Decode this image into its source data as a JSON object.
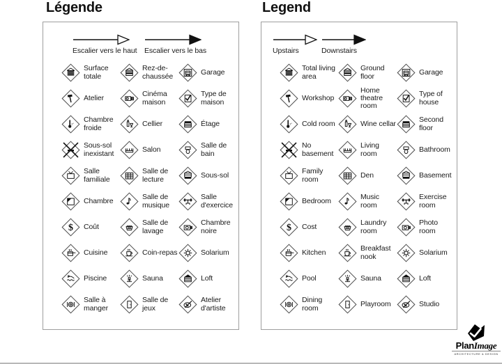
{
  "page": {
    "background": "#ffffff",
    "ink": "#1a1a1a",
    "panel_border": "#9e9e9e"
  },
  "panels": [
    {
      "id": "fr",
      "title": "Légende",
      "arrows": [
        {
          "label": "Escalier vers le haut",
          "head": "open"
        },
        {
          "label": "Escalier vers le bas",
          "head": "filled"
        }
      ],
      "items": [
        {
          "icon": "house-all",
          "label": "Surface totale"
        },
        {
          "icon": "house-ground",
          "label": "Rez-de-chaussée"
        },
        {
          "icon": "garage",
          "label": "Garage"
        },
        {
          "icon": "hammer",
          "label": "Atelier"
        },
        {
          "icon": "projector",
          "label": "Cinéma maison"
        },
        {
          "icon": "check-sheet",
          "label": "Type de maison"
        },
        {
          "icon": "thermometer",
          "label": "Chambre froide"
        },
        {
          "icon": "wine",
          "label": "Cellier"
        },
        {
          "icon": "house-top",
          "label": "Étage"
        },
        {
          "icon": "x-mark",
          "label": "Sous-sol inexistant"
        },
        {
          "icon": "sofa",
          "label": "Salon"
        },
        {
          "icon": "toilet",
          "label": "Salle de bain"
        },
        {
          "icon": "tv",
          "label": "Salle familiale"
        },
        {
          "icon": "bookshelf",
          "label": "Salle de lecture"
        },
        {
          "icon": "house-bottom",
          "label": "Sous-sol"
        },
        {
          "icon": "bed",
          "label": "Chambre"
        },
        {
          "icon": "music-note",
          "label": "Salle de musique"
        },
        {
          "icon": "dumbbell",
          "label": "Salle d'exercice"
        },
        {
          "icon": "dollar",
          "label": "Coût"
        },
        {
          "icon": "basket",
          "label": "Salle de lavage"
        },
        {
          "icon": "camera",
          "label": "Chambre noire"
        },
        {
          "icon": "pot",
          "label": "Cuisine"
        },
        {
          "icon": "cup",
          "label": "Coin-repas"
        },
        {
          "icon": "sun",
          "label": "Solarium"
        },
        {
          "icon": "pool",
          "label": "Piscine"
        },
        {
          "icon": "sauna",
          "label": "Sauna"
        },
        {
          "icon": "house-roof",
          "label": "Loft"
        },
        {
          "icon": "plate",
          "label": "Salle à manger"
        },
        {
          "icon": "door",
          "label": "Salle de jeux"
        },
        {
          "icon": "palette",
          "label": "Atelier d'artiste"
        }
      ]
    },
    {
      "id": "en",
      "title": "Legend",
      "arrows": [
        {
          "label": "Upstairs",
          "head": "open"
        },
        {
          "label": "Downstairs",
          "head": "filled"
        }
      ],
      "items": [
        {
          "icon": "house-all",
          "label": "Total living area"
        },
        {
          "icon": "house-ground",
          "label": "Ground floor"
        },
        {
          "icon": "garage",
          "label": "Garage"
        },
        {
          "icon": "hammer",
          "label": "Workshop"
        },
        {
          "icon": "projector",
          "label": "Home theatre room"
        },
        {
          "icon": "check-sheet",
          "label": "Type of house"
        },
        {
          "icon": "thermometer",
          "label": "Cold room"
        },
        {
          "icon": "wine",
          "label": "Wine cellar"
        },
        {
          "icon": "house-top",
          "label": "Second floor"
        },
        {
          "icon": "x-mark",
          "label": "No basement"
        },
        {
          "icon": "sofa",
          "label": "Living room"
        },
        {
          "icon": "toilet",
          "label": "Bathroom"
        },
        {
          "icon": "tv",
          "label": "Family room"
        },
        {
          "icon": "bookshelf",
          "label": "Den"
        },
        {
          "icon": "house-bottom",
          "label": "Basement"
        },
        {
          "icon": "bed",
          "label": "Bedroom"
        },
        {
          "icon": "music-note",
          "label": "Music room"
        },
        {
          "icon": "dumbbell",
          "label": "Exercise room"
        },
        {
          "icon": "dollar",
          "label": "Cost"
        },
        {
          "icon": "basket",
          "label": "Laundry room"
        },
        {
          "icon": "camera",
          "label": "Photo room"
        },
        {
          "icon": "pot",
          "label": "Kitchen"
        },
        {
          "icon": "cup",
          "label": "Breakfast nook"
        },
        {
          "icon": "sun",
          "label": "Solarium"
        },
        {
          "icon": "pool",
          "label": "Pool"
        },
        {
          "icon": "sauna",
          "label": "Sauna"
        },
        {
          "icon": "house-roof",
          "label": "Loft"
        },
        {
          "icon": "plate",
          "label": "Dining room"
        },
        {
          "icon": "door",
          "label": "Playroom"
        },
        {
          "icon": "palette",
          "label": "Studio"
        }
      ]
    }
  ],
  "logo": {
    "plan": "Plan",
    "image": "Image",
    "tagline": "ARCHITECTURE & DESIGN"
  }
}
